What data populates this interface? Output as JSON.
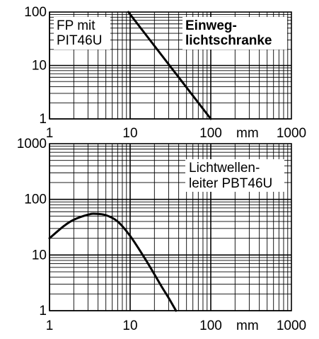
{
  "chart_data": [
    {
      "type": "line",
      "scale": {
        "x": "log",
        "y": "log"
      },
      "xlim": [
        1,
        1000
      ],
      "ylim": [
        1,
        100
      ],
      "x_ticks": [
        "1",
        "10",
        "100",
        "1000"
      ],
      "y_ticks": [
        "1",
        "10",
        "100"
      ],
      "x_unit": "mm",
      "grid": true,
      "labels": [
        "FP mit",
        "PIT46U"
      ],
      "labels_bold": [
        "Einweg-",
        "lichtschranke"
      ],
      "series": [
        {
          "x": [
            9.5,
            100
          ],
          "y": [
            100,
            1
          ]
        }
      ]
    },
    {
      "type": "line",
      "scale": {
        "x": "log",
        "y": "log"
      },
      "xlim": [
        1,
        1000
      ],
      "ylim": [
        1,
        1000
      ],
      "x_ticks": [
        "1",
        "10",
        "100",
        "1000"
      ],
      "y_ticks": [
        "1",
        "10",
        "100",
        "1000"
      ],
      "x_unit": "mm",
      "grid": true,
      "labels": [
        "Lichtwellen-",
        "leiter PBT46U"
      ],
      "labels_bold": [],
      "series": [
        {
          "x": [
            1,
            1.5,
            2,
            3,
            3.7,
            5,
            7,
            10,
            15,
            20,
            25,
            30,
            37
          ],
          "y": [
            20,
            33,
            43,
            53,
            55,
            52,
            40,
            22,
            9,
            4.5,
            2.6,
            1.7,
            1
          ]
        }
      ]
    }
  ]
}
